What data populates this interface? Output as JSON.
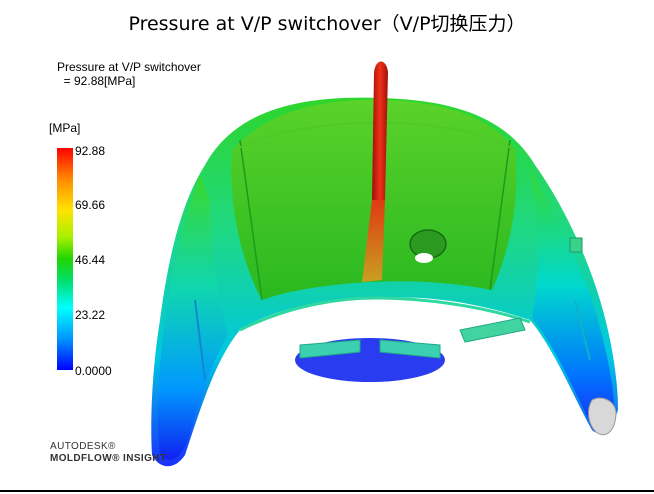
{
  "title": "Pressure at V/P switchover（V/P切换压力）",
  "result_info": {
    "line1": "Pressure at V/P switchover",
    "line2": "  = 92.88[MPa]"
  },
  "legend": {
    "unit": "[MPa]",
    "ticks": [
      "92.88",
      "69.66",
      "46.44",
      "23.22",
      "0.0000"
    ],
    "max_color": "#ff0000",
    "min_color": "#0000ff"
  },
  "branding": {
    "line1": "AUTODESK®",
    "line2": "MOLDFLOW® INSIGHT"
  },
  "colors": {
    "green": "#2ecc1f",
    "red": "#e02010",
    "blue": "#1a3cff"
  }
}
